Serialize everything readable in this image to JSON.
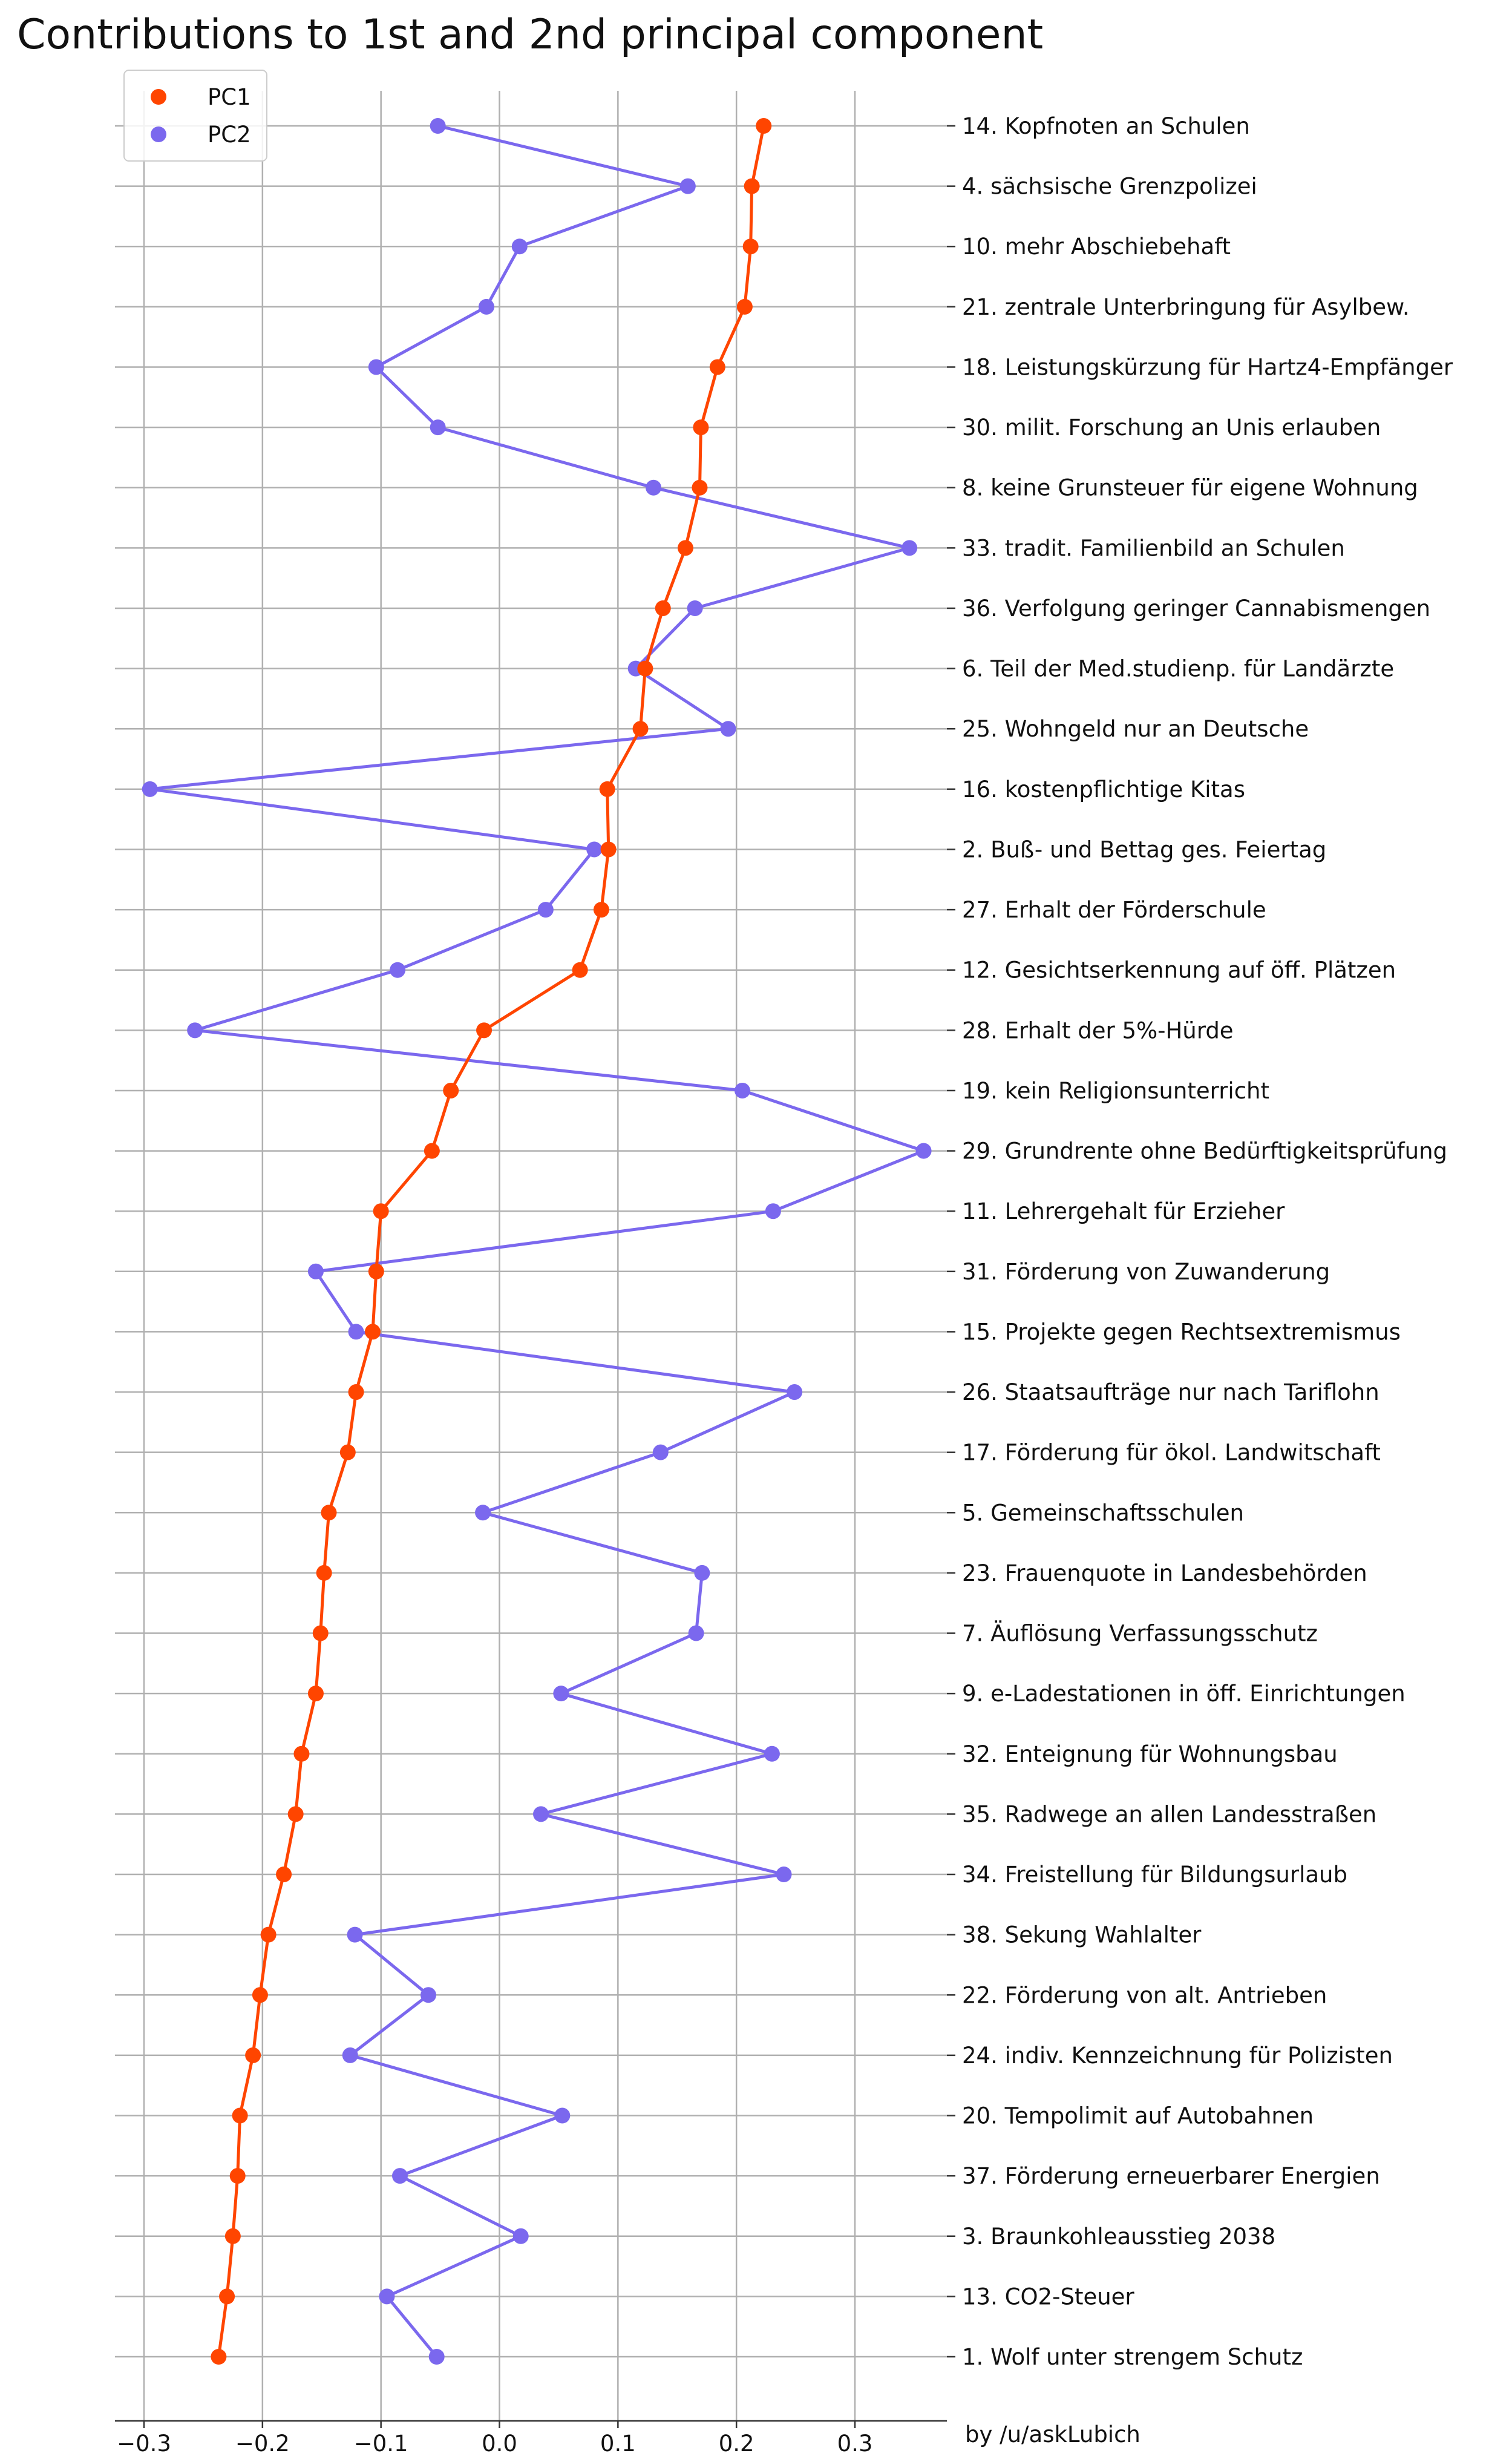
{
  "credit": "by /u/askLubich",
  "colors": {
    "pc1": "#ff4500",
    "pc2": "#7b68ee",
    "grid": "#b0b0b0",
    "axis": "#333333"
  },
  "chart_data": {
    "type": "line",
    "title": "Contributions to 1st and 2nd principal component",
    "orientation": "horizontal",
    "xlim": [
      -0.33,
      0.38
    ],
    "xticks": [
      -0.3,
      -0.2,
      -0.1,
      0.0,
      0.1,
      0.2,
      0.3
    ],
    "xtick_labels": [
      "−0.3",
      "−0.2",
      "−0.1",
      "0.0",
      "0.1",
      "0.2",
      "0.3"
    ],
    "grid": true,
    "legend": "top-left",
    "categories": [
      "14. Kopfnoten an Schulen",
      "4. sächsische Grenzpolizei",
      "10. mehr Abschiebehaft",
      "21. zentrale Unterbringung für Asylbew.",
      "18. Leistungskürzung für Hartz4-Empfänger",
      "30. milit. Forschung an Unis erlauben",
      "8. keine Grunsteuer für eigene Wohnung",
      "33. tradit. Familienbild an Schulen",
      "36. Verfolgung geringer Cannabismengen",
      "6. Teil der Med.studienp. für Landärzte",
      "25. Wohngeld nur an Deutsche",
      "16. kostenpflichtige Kitas",
      "2. Buß- und Bettag ges. Feiertag",
      "27. Erhalt der Förderschule",
      "12. Gesichtserkennung auf öff. Plätzen",
      "28. Erhalt der 5%-Hürde",
      "19. kein Religionsunterricht",
      "29. Grundrente ohne Bedürftigkeitsprüfung",
      "11. Lehrergehalt für Erzieher",
      "31. Förderung von Zuwanderung",
      "15. Projekte gegen Rechtsextremismus",
      "26. Staatsaufträge nur nach Tariflohn",
      "17. Förderung für ökol. Landwitschaft",
      "5. Gemeinschaftsschulen",
      "23. Frauenquote in Landesbehörden",
      "7. Äuflösung Verfassungsschutz",
      "9. e-Ladestationen in öff. Einrichtungen",
      "32. Enteignung für Wohnungsbau",
      "35. Radwege an allen Landesstraßen",
      "34. Freistellung für Bildungsurlaub",
      "38. Sekung Wahlalter",
      "22. Förderung von alt. Antrieben",
      "24. indiv. Kennzeichnung für Polizisten",
      "20. Tempolimit auf Autobahnen",
      "37. Förderung erneuerbarer Energien",
      "3. Braunkohleausstieg 2038",
      "13. CO2-Steuer",
      "1. Wolf unter strengem Schutz"
    ],
    "series": [
      {
        "name": "PC1",
        "values": [
          0.223,
          0.213,
          0.212,
          0.207,
          0.184,
          0.17,
          0.169,
          0.157,
          0.138,
          0.123,
          0.119,
          0.091,
          0.092,
          0.086,
          0.068,
          -0.013,
          -0.041,
          -0.057,
          -0.1,
          -0.104,
          -0.107,
          -0.121,
          -0.128,
          -0.144,
          -0.148,
          -0.151,
          -0.155,
          -0.167,
          -0.172,
          -0.182,
          -0.195,
          -0.202,
          -0.208,
          -0.219,
          -0.221,
          -0.225,
          -0.23,
          -0.237
        ]
      },
      {
        "name": "PC2",
        "values": [
          -0.052,
          0.159,
          0.017,
          -0.011,
          -0.104,
          -0.052,
          0.13,
          0.346,
          0.165,
          0.115,
          0.193,
          -0.295,
          0.08,
          0.039,
          -0.086,
          -0.257,
          0.205,
          0.358,
          0.231,
          -0.155,
          -0.121,
          0.249,
          0.136,
          -0.014,
          0.171,
          0.166,
          0.052,
          0.23,
          0.035,
          0.24,
          -0.122,
          -0.06,
          -0.126,
          0.053,
          -0.084,
          0.018,
          -0.095,
          -0.053
        ]
      }
    ]
  }
}
